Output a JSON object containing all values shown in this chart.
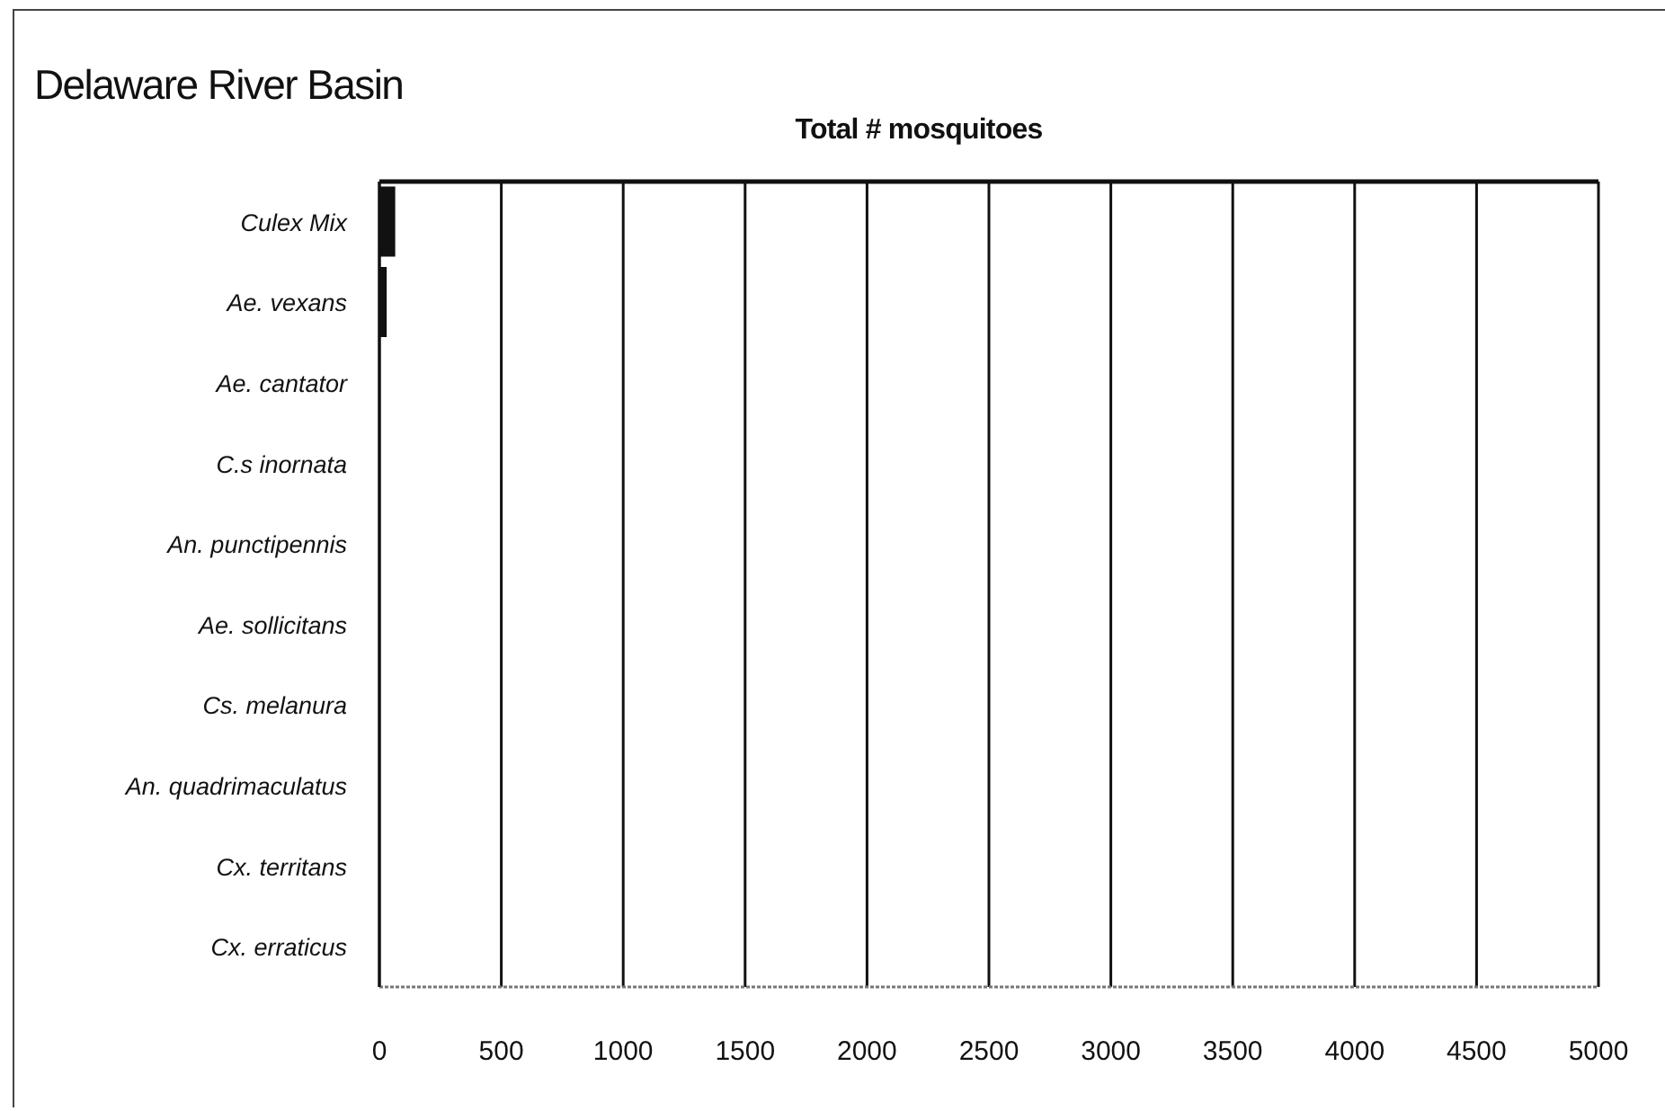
{
  "chart_data": {
    "type": "bar",
    "orientation": "horizontal",
    "title": "Delaware River Basin",
    "xlabel": "Total # mosquitoes",
    "categories": [
      "Culex Mix",
      "Ae. vexans",
      "Ae. cantator",
      "C.s inornata",
      "An. punctipennis",
      "Ae. sollicitans",
      "Cs. melanura",
      "An. quadrimaculatus",
      "Cx. territans",
      "Cx. erraticus"
    ],
    "values": [
      65,
      30,
      0,
      0,
      0,
      0,
      0,
      0,
      0,
      0
    ],
    "color": "#111111",
    "xlim": [
      0,
      5000
    ],
    "xticks": [
      0,
      500,
      1000,
      1500,
      2000,
      2500,
      3000,
      3500,
      4000,
      4500,
      5000
    ],
    "grid": "x"
  }
}
